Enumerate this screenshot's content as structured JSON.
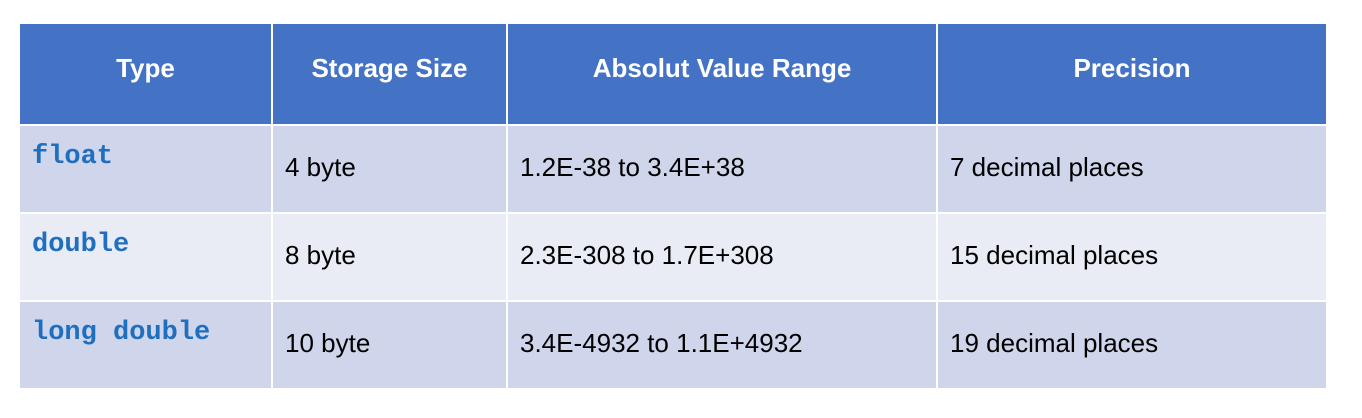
{
  "headers": [
    "Type",
    "Storage Size",
    "Absolut Value Range",
    "Precision"
  ],
  "rows": [
    {
      "type": "float",
      "storage": "4 byte",
      "range": "1.2E-38 to 3.4E+38",
      "precision": "7 decimal places"
    },
    {
      "type": "double",
      "storage": "8 byte",
      "range": "2.3E-308 to 1.7E+308",
      "precision": "15 decimal places"
    },
    {
      "type": "long double",
      "storage": "10 byte",
      "range": "3.4E-4932 to 1.1E+4932",
      "precision": "19 decimal places"
    }
  ],
  "colors": {
    "header_bg": "#4472c4",
    "row_odd_bg": "#cfd5ea",
    "row_even_bg": "#e9ebf5",
    "type_text": "#1f6fc0"
  }
}
